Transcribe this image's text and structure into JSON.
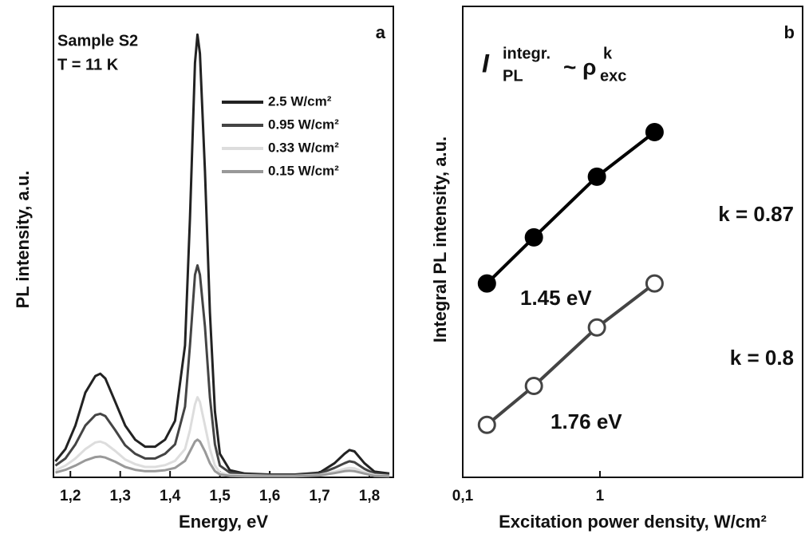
{
  "chart_data": [
    {
      "type": "line",
      "panel_label": "a",
      "annotations": [
        "Sample S2",
        "T = 11 K"
      ],
      "xlabel": "Energy, eV",
      "ylabel": "PL intensity, a.u.",
      "xlim": [
        1.166,
        1.848
      ],
      "ylim": [
        0,
        100
      ],
      "xticks": [
        {
          "value": 1.2,
          "label": "1,2"
        },
        {
          "value": 1.3,
          "label": "1,3"
        },
        {
          "value": 1.4,
          "label": "1,4"
        },
        {
          "value": 1.5,
          "label": "1,5"
        },
        {
          "value": 1.6,
          "label": "1,6"
        },
        {
          "value": 1.7,
          "label": "1,7"
        },
        {
          "value": 1.8,
          "label": "1,8"
        }
      ],
      "x": [
        1.17,
        1.19,
        1.21,
        1.23,
        1.25,
        1.26,
        1.27,
        1.29,
        1.31,
        1.33,
        1.35,
        1.37,
        1.39,
        1.41,
        1.43,
        1.44,
        1.45,
        1.455,
        1.46,
        1.47,
        1.48,
        1.49,
        1.5,
        1.52,
        1.55,
        1.6,
        1.65,
        1.7,
        1.73,
        1.75,
        1.76,
        1.77,
        1.79,
        1.81,
        1.84
      ],
      "series": [
        {
          "name": "2.5 W/cm²",
          "color": "#222222",
          "values": [
            3.4,
            6,
            11,
            18,
            21.5,
            22,
            21,
            16,
            11,
            8,
            6.5,
            6.5,
            8,
            12,
            28,
            55,
            88,
            94,
            90,
            65,
            35,
            14,
            5,
            1.5,
            0.8,
            0.6,
            0.6,
            1,
            3,
            5,
            5.8,
            5.5,
            3,
            1.2,
            0.8
          ]
        },
        {
          "name": "0.95 W/cm²",
          "color": "#444444",
          "values": [
            2.5,
            4,
            7,
            11,
            13.2,
            13.5,
            13,
            10,
            6.8,
            5,
            4,
            4,
            5,
            7,
            15,
            28,
            43,
            45,
            43,
            32,
            17,
            7,
            2.5,
            1,
            0.6,
            0.5,
            0.5,
            0.8,
            2,
            3,
            3.4,
            3.2,
            1.8,
            0.8,
            0.5
          ]
        },
        {
          "name": "0.33 W/cm²",
          "color": "#dddddd",
          "values": [
            1.5,
            2.5,
            4,
            6,
            7.4,
            7.6,
            7.2,
            5.6,
            3.8,
            2.8,
            2.2,
            2.2,
            2.6,
            3.5,
            6,
            10,
            15.5,
            17,
            16,
            11,
            6,
            2.5,
            1,
            0.5,
            0.4,
            0.3,
            0.3,
            0.5,
            1.2,
            1.8,
            2,
            1.9,
            1.1,
            0.5,
            0.3
          ]
        },
        {
          "name": "0.15 W/cm²",
          "color": "#999999",
          "values": [
            1,
            1.6,
            2.5,
            3.6,
            4.3,
            4.4,
            4.2,
            3.3,
            2.2,
            1.6,
            1.3,
            1.3,
            1.5,
            2,
            3.5,
            5.5,
            7.6,
            8,
            7.6,
            5.5,
            3,
            1.3,
            0.6,
            0.3,
            0.2,
            0.2,
            0.2,
            0.4,
            0.9,
            1.3,
            1.4,
            1.3,
            0.8,
            0.3,
            0.2
          ]
        }
      ],
      "legend": "upper right"
    },
    {
      "type": "line",
      "panel_label": "b",
      "log_x": true,
      "log_y": true,
      "xlabel": "Excitation power density, W/cm²",
      "ylabel": "Integral PL intensity, a.u.",
      "formula": {
        "symbol": "I",
        "sup": "integr.",
        "sub": "PL",
        "relation": "~ ρ",
        "sup2": "k",
        "sub2": "exc"
      },
      "xlim": [
        0.1,
        30
      ],
      "ylim": [
        0.49,
        820
      ],
      "xticks": [
        {
          "value": 0.1,
          "label": "0,1"
        },
        1
      ],
      "x": [
        0.15,
        0.33,
        0.95,
        2.5
      ],
      "series": [
        {
          "name": "1.45 eV",
          "fit_label": "k = 0.87",
          "color": "#000000",
          "marker": "filled",
          "values": [
            10.4,
            21.5,
            56,
            113
          ]
        },
        {
          "name": "1.76 eV",
          "fit_label": "k = 0.8",
          "color": "#444444",
          "marker": "open",
          "values": [
            1.12,
            2.07,
            5.2,
            10.4
          ]
        }
      ]
    }
  ]
}
